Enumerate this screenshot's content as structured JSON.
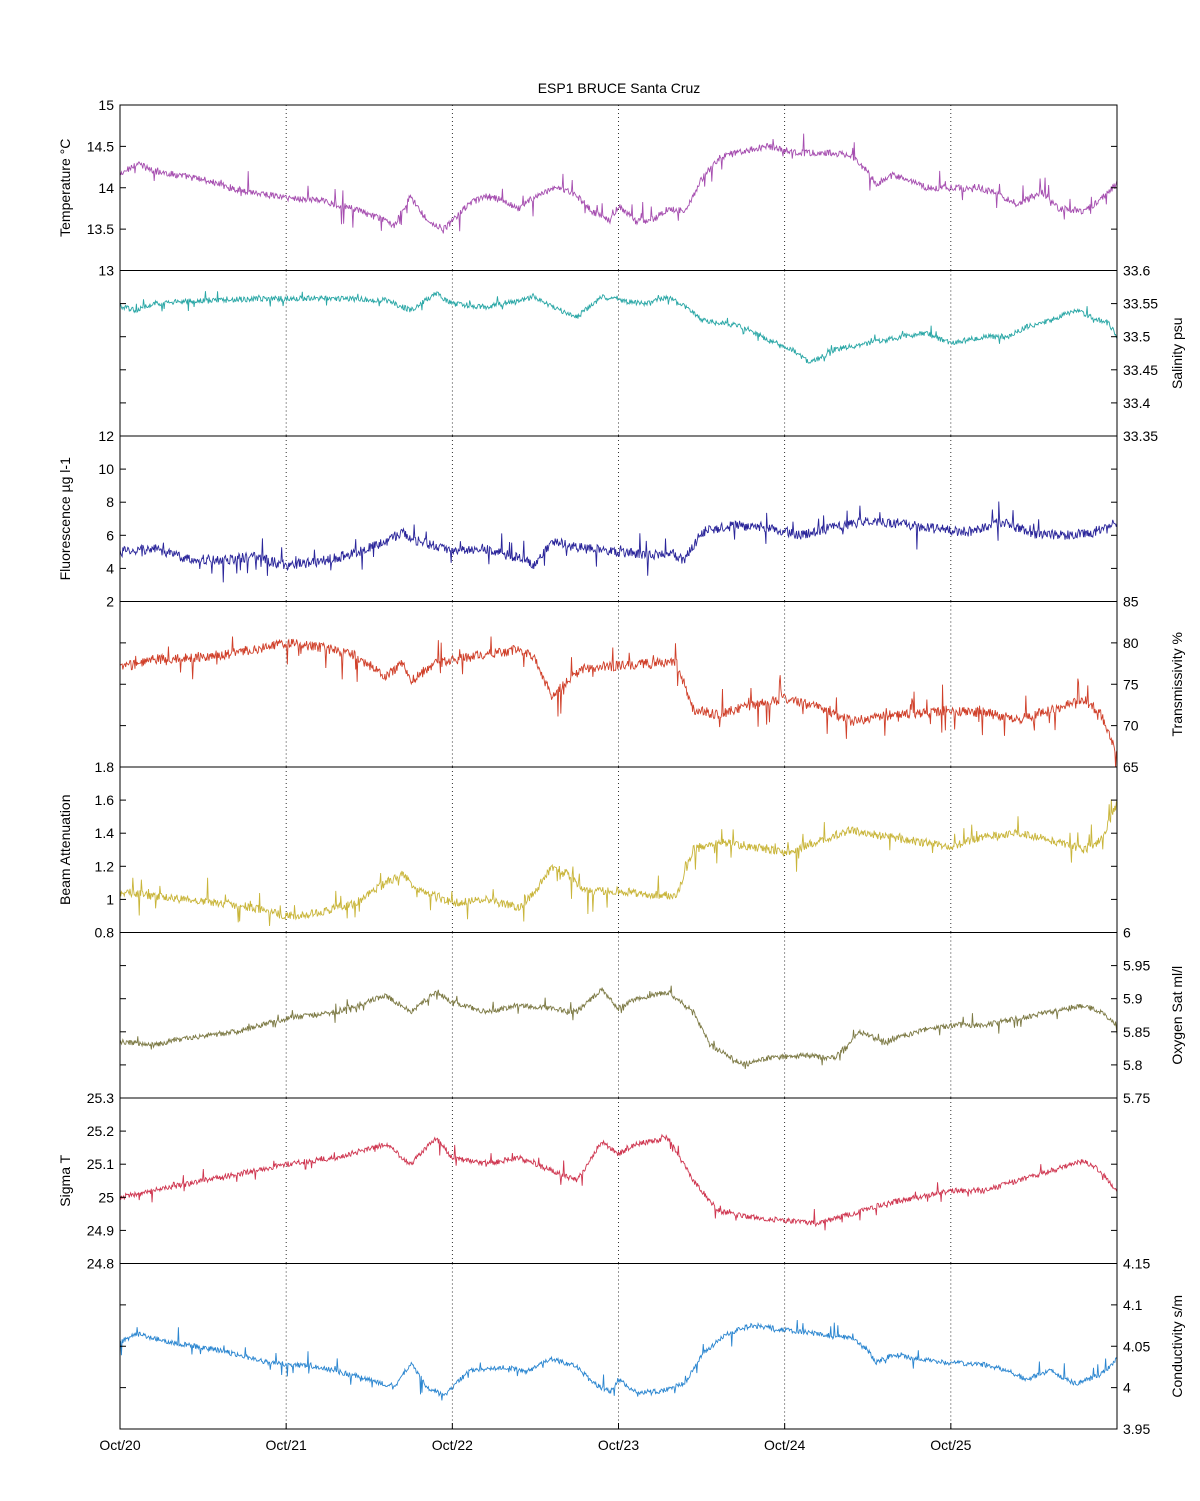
{
  "figure": {
    "title": "ESP1 BRUCE Santa Cruz"
  },
  "chart_data": [
    {
      "type": "line",
      "panel_id": "temperature",
      "ylabel": "Temperature °C",
      "axis_side": "left",
      "ylim": [
        13,
        15
      ],
      "yticks": [
        13,
        13.5,
        14,
        14.5,
        15
      ],
      "ytick_labels": [
        "13",
        "13.5",
        "14",
        "14.5",
        "15"
      ],
      "color": "#a64fb0",
      "noise_amp": 0.04,
      "spike_amp": 0.22,
      "points": [
        [
          0,
          14.15
        ],
        [
          0.1,
          14.3
        ],
        [
          0.2,
          14.2
        ],
        [
          0.3,
          14.17
        ],
        [
          0.5,
          14.1
        ],
        [
          0.7,
          13.98
        ],
        [
          1,
          13.88
        ],
        [
          1.2,
          13.85
        ],
        [
          1.4,
          13.75
        ],
        [
          1.6,
          13.6
        ],
        [
          1.65,
          13.55
        ],
        [
          1.75,
          13.9
        ],
        [
          1.85,
          13.6
        ],
        [
          1.95,
          13.5
        ],
        [
          2.1,
          13.8
        ],
        [
          2.2,
          13.9
        ],
        [
          2.3,
          13.85
        ],
        [
          2.4,
          13.75
        ],
        [
          2.5,
          13.9
        ],
        [
          2.65,
          14.0
        ],
        [
          2.75,
          13.9
        ],
        [
          2.85,
          13.7
        ],
        [
          2.95,
          13.6
        ],
        [
          3.0,
          13.78
        ],
        [
          3.1,
          13.6
        ],
        [
          3.2,
          13.6
        ],
        [
          3.3,
          13.75
        ],
        [
          3.4,
          13.72
        ],
        [
          3.5,
          14.1
        ],
        [
          3.6,
          14.35
        ],
        [
          3.75,
          14.45
        ],
        [
          3.9,
          14.5
        ],
        [
          4.1,
          14.42
        ],
        [
          4.3,
          14.42
        ],
        [
          4.4,
          14.38
        ],
        [
          4.5,
          14.2
        ],
        [
          4.55,
          14.05
        ],
        [
          4.65,
          14.15
        ],
        [
          4.75,
          14.1
        ],
        [
          4.85,
          14.0
        ],
        [
          5.0,
          14.0
        ],
        [
          5.2,
          13.98
        ],
        [
          5.3,
          13.9
        ],
        [
          5.4,
          13.8
        ],
        [
          5.55,
          13.95
        ],
        [
          5.65,
          13.75
        ],
        [
          5.8,
          13.72
        ],
        [
          5.9,
          13.85
        ],
        [
          6.0,
          14.05
        ]
      ]
    },
    {
      "type": "line",
      "panel_id": "salinity",
      "ylabel": "Salinity psu",
      "axis_side": "right",
      "ylim": [
        33.35,
        33.6
      ],
      "yticks": [
        33.35,
        33.4,
        33.45,
        33.5,
        33.55,
        33.6
      ],
      "ytick_labels": [
        "33.35",
        "33.4",
        "33.45",
        "33.5",
        "33.55",
        "33.6"
      ],
      "color": "#2aa7a6",
      "noise_amp": 0.004,
      "spike_amp": 0.012,
      "points": [
        [
          0,
          33.545
        ],
        [
          0.1,
          33.54
        ],
        [
          0.2,
          33.55
        ],
        [
          0.5,
          33.555
        ],
        [
          1,
          33.558
        ],
        [
          1.3,
          33.558
        ],
        [
          1.6,
          33.555
        ],
        [
          1.75,
          33.54
        ],
        [
          1.9,
          33.565
        ],
        [
          2.0,
          33.55
        ],
        [
          2.2,
          33.545
        ],
        [
          2.4,
          33.555
        ],
        [
          2.5,
          33.56
        ],
        [
          2.6,
          33.545
        ],
        [
          2.75,
          33.53
        ],
        [
          2.9,
          33.56
        ],
        [
          3.0,
          33.555
        ],
        [
          3.15,
          33.55
        ],
        [
          3.3,
          33.56
        ],
        [
          3.4,
          33.545
        ],
        [
          3.5,
          33.525
        ],
        [
          3.75,
          33.515
        ],
        [
          3.9,
          33.495
        ],
        [
          4.05,
          33.48
        ],
        [
          4.15,
          33.46
        ],
        [
          4.3,
          33.48
        ],
        [
          4.5,
          33.49
        ],
        [
          4.7,
          33.5
        ],
        [
          4.85,
          33.505
        ],
        [
          5.0,
          33.49
        ],
        [
          5.1,
          33.495
        ],
        [
          5.2,
          33.5
        ],
        [
          5.35,
          33.5
        ],
        [
          5.45,
          33.515
        ],
        [
          5.6,
          33.525
        ],
        [
          5.75,
          33.54
        ],
        [
          5.85,
          33.53
        ],
        [
          5.95,
          33.52
        ],
        [
          6.0,
          33.5
        ]
      ]
    },
    {
      "type": "line",
      "panel_id": "fluorescence",
      "ylabel": "Fluorescence µg l-1",
      "axis_side": "left",
      "ylim": [
        2,
        12
      ],
      "yticks": [
        2,
        4,
        6,
        8,
        10,
        12
      ],
      "ytick_labels": [
        "2",
        "4",
        "6",
        "8",
        "10",
        "12"
      ],
      "color": "#2a259a",
      "noise_amp": 0.3,
      "spike_amp": 1.2,
      "points": [
        [
          0,
          5.0
        ],
        [
          0.2,
          5.2
        ],
        [
          0.4,
          4.6
        ],
        [
          0.6,
          4.5
        ],
        [
          0.8,
          4.7
        ],
        [
          1.0,
          4.2
        ],
        [
          1.2,
          4.4
        ],
        [
          1.4,
          4.9
        ],
        [
          1.6,
          5.6
        ],
        [
          1.7,
          6.2
        ],
        [
          1.8,
          5.6
        ],
        [
          2.0,
          5.1
        ],
        [
          2.2,
          5.2
        ],
        [
          2.4,
          4.6
        ],
        [
          2.5,
          4.2
        ],
        [
          2.6,
          5.6
        ],
        [
          2.7,
          5.4
        ],
        [
          2.8,
          5.2
        ],
        [
          3.0,
          5.0
        ],
        [
          3.2,
          4.8
        ],
        [
          3.3,
          5.0
        ],
        [
          3.4,
          4.5
        ],
        [
          3.5,
          6.2
        ],
        [
          3.7,
          6.6
        ],
        [
          3.9,
          6.5
        ],
        [
          4.1,
          6.0
        ],
        [
          4.3,
          6.5
        ],
        [
          4.5,
          6.9
        ],
        [
          4.7,
          6.7
        ],
        [
          4.9,
          6.4
        ],
        [
          5.1,
          6.2
        ],
        [
          5.3,
          6.8
        ],
        [
          5.5,
          6.1
        ],
        [
          5.7,
          6.0
        ],
        [
          5.9,
          6.3
        ],
        [
          6.0,
          6.8
        ]
      ]
    },
    {
      "type": "line",
      "panel_id": "transmissivity",
      "ylabel": "Transmissivity %",
      "axis_side": "right",
      "ylim": [
        65,
        85
      ],
      "yticks": [
        65,
        70,
        75,
        80,
        85
      ],
      "ytick_labels": [
        "65",
        "70",
        "75",
        "80",
        "85"
      ],
      "color": "#d0402a",
      "noise_amp": 0.6,
      "spike_amp": 3.0,
      "points": [
        [
          0,
          77
        ],
        [
          0.2,
          78
        ],
        [
          0.4,
          78.2
        ],
        [
          0.6,
          78.5
        ],
        [
          0.8,
          79.2
        ],
        [
          1.0,
          80.0
        ],
        [
          1.2,
          79.5
        ],
        [
          1.4,
          78.6
        ],
        [
          1.6,
          76
        ],
        [
          1.7,
          77.5
        ],
        [
          1.75,
          75.5
        ],
        [
          1.9,
          77.5
        ],
        [
          2.1,
          78.3
        ],
        [
          2.3,
          78.8
        ],
        [
          2.4,
          79.3
        ],
        [
          2.5,
          78
        ],
        [
          2.6,
          73.5
        ],
        [
          2.7,
          75.5
        ],
        [
          2.8,
          77
        ],
        [
          3.0,
          77.2
        ],
        [
          3.2,
          77.5
        ],
        [
          3.35,
          77.8
        ],
        [
          3.45,
          72
        ],
        [
          3.6,
          71.3
        ],
        [
          3.8,
          72.5
        ],
        [
          4.0,
          73.2
        ],
        [
          4.2,
          72.3
        ],
        [
          4.4,
          70.5
        ],
        [
          4.6,
          71.2
        ],
        [
          4.8,
          71.5
        ],
        [
          5.0,
          71.8
        ],
        [
          5.2,
          71.6
        ],
        [
          5.4,
          70.8
        ],
        [
          5.6,
          71.8
        ],
        [
          5.8,
          73.2
        ],
        [
          5.9,
          71.5
        ],
        [
          6.0,
          66.5
        ]
      ]
    },
    {
      "type": "line",
      "panel_id": "beam_attenuation",
      "ylabel": "Beam Attenuation",
      "axis_side": "left",
      "ylim": [
        0.8,
        1.8
      ],
      "yticks": [
        0.8,
        1,
        1.2,
        1.4,
        1.6,
        1.8
      ],
      "ytick_labels": [
        "0.8",
        "1",
        "1.2",
        "1.4",
        "1.6",
        "1.8"
      ],
      "color": "#c9b53a",
      "noise_amp": 0.025,
      "spike_amp": 0.13,
      "points": [
        [
          0,
          1.05
        ],
        [
          0.2,
          1.02
        ],
        [
          0.4,
          1.0
        ],
        [
          0.6,
          0.98
        ],
        [
          0.8,
          0.95
        ],
        [
          1.0,
          0.9
        ],
        [
          1.2,
          0.92
        ],
        [
          1.4,
          0.97
        ],
        [
          1.6,
          1.1
        ],
        [
          1.7,
          1.15
        ],
        [
          1.8,
          1.05
        ],
        [
          2.0,
          0.98
        ],
        [
          2.2,
          1.0
        ],
        [
          2.4,
          0.95
        ],
        [
          2.5,
          1.05
        ],
        [
          2.6,
          1.2
        ],
        [
          2.7,
          1.15
        ],
        [
          2.8,
          1.05
        ],
        [
          3.0,
          1.05
        ],
        [
          3.2,
          1.03
        ],
        [
          3.35,
          1.02
        ],
        [
          3.45,
          1.3
        ],
        [
          3.6,
          1.35
        ],
        [
          3.8,
          1.32
        ],
        [
          4.0,
          1.28
        ],
        [
          4.2,
          1.35
        ],
        [
          4.4,
          1.42
        ],
        [
          4.6,
          1.38
        ],
        [
          4.8,
          1.35
        ],
        [
          5.0,
          1.32
        ],
        [
          5.2,
          1.38
        ],
        [
          5.4,
          1.4
        ],
        [
          5.6,
          1.36
        ],
        [
          5.8,
          1.3
        ],
        [
          5.9,
          1.35
        ],
        [
          6.0,
          1.58
        ]
      ]
    },
    {
      "type": "line",
      "panel_id": "oxygen_sat",
      "ylabel": "Oxygen Sat ml/l",
      "axis_side": "right",
      "ylim": [
        5.75,
        6
      ],
      "yticks": [
        5.75,
        5.8,
        5.85,
        5.9,
        5.95,
        6
      ],
      "ytick_labels": [
        "5.75",
        "5.8",
        "5.85",
        "5.9",
        "5.95",
        "6"
      ],
      "color": "#7d7a45",
      "noise_amp": 0.004,
      "spike_amp": 0.015,
      "points": [
        [
          0,
          5.835
        ],
        [
          0.2,
          5.83
        ],
        [
          0.4,
          5.84
        ],
        [
          0.7,
          5.85
        ],
        [
          1.0,
          5.87
        ],
        [
          1.3,
          5.88
        ],
        [
          1.6,
          5.905
        ],
        [
          1.75,
          5.88
        ],
        [
          1.9,
          5.91
        ],
        [
          2.0,
          5.895
        ],
        [
          2.2,
          5.88
        ],
        [
          2.4,
          5.89
        ],
        [
          2.6,
          5.885
        ],
        [
          2.75,
          5.88
        ],
        [
          2.9,
          5.915
        ],
        [
          3.0,
          5.885
        ],
        [
          3.1,
          5.9
        ],
        [
          3.3,
          5.91
        ],
        [
          3.45,
          5.88
        ],
        [
          3.55,
          5.83
        ],
        [
          3.75,
          5.8
        ],
        [
          3.9,
          5.81
        ],
        [
          4.1,
          5.815
        ],
        [
          4.3,
          5.81
        ],
        [
          4.45,
          5.85
        ],
        [
          4.6,
          5.835
        ],
        [
          4.8,
          5.85
        ],
        [
          5.0,
          5.86
        ],
        [
          5.2,
          5.86
        ],
        [
          5.4,
          5.87
        ],
        [
          5.6,
          5.88
        ],
        [
          5.8,
          5.89
        ],
        [
          5.9,
          5.88
        ],
        [
          6.0,
          5.86
        ]
      ]
    },
    {
      "type": "line",
      "panel_id": "sigma_t",
      "ylabel": "Sigma T",
      "axis_side": "left",
      "ylim": [
        24.8,
        25.3
      ],
      "yticks": [
        24.8,
        24.9,
        25,
        25.1,
        25.2,
        25.3
      ],
      "ytick_labels": [
        "24.8",
        "24.9",
        "25",
        "25.1",
        "25.2",
        "25.3"
      ],
      "color": "#cf3650",
      "noise_amp": 0.008,
      "spike_amp": 0.04,
      "points": [
        [
          0,
          25.0
        ],
        [
          0.2,
          25.02
        ],
        [
          0.4,
          25.04
        ],
        [
          0.7,
          25.07
        ],
        [
          1.0,
          25.1
        ],
        [
          1.3,
          25.12
        ],
        [
          1.6,
          25.16
        ],
        [
          1.75,
          25.1
        ],
        [
          1.9,
          25.18
        ],
        [
          2.0,
          25.12
        ],
        [
          2.2,
          25.1
        ],
        [
          2.4,
          25.12
        ],
        [
          2.6,
          25.08
        ],
        [
          2.75,
          25.05
        ],
        [
          2.9,
          25.17
        ],
        [
          3.0,
          25.13
        ],
        [
          3.1,
          25.16
        ],
        [
          3.3,
          25.18
        ],
        [
          3.45,
          25.05
        ],
        [
          3.6,
          24.96
        ],
        [
          3.8,
          24.94
        ],
        [
          4.0,
          24.93
        ],
        [
          4.2,
          24.92
        ],
        [
          4.4,
          24.95
        ],
        [
          4.6,
          24.98
        ],
        [
          4.8,
          25.0
        ],
        [
          5.0,
          25.02
        ],
        [
          5.2,
          25.02
        ],
        [
          5.4,
          25.05
        ],
        [
          5.6,
          25.08
        ],
        [
          5.8,
          25.11
        ],
        [
          5.9,
          25.08
        ],
        [
          6.0,
          25.02
        ]
      ]
    },
    {
      "type": "line",
      "panel_id": "conductivity",
      "ylabel": "Conductivity s/m",
      "axis_side": "right",
      "ylim": [
        3.95,
        4.15
      ],
      "yticks": [
        3.95,
        4,
        4.05,
        4.1,
        4.15
      ],
      "ytick_labels": [
        "3.95",
        "4",
        "4.05",
        "4.1",
        "4.15"
      ],
      "color": "#2b86d0",
      "noise_amp": 0.003,
      "spike_amp": 0.018,
      "points": [
        [
          0,
          4.055
        ],
        [
          0.1,
          4.065
        ],
        [
          0.3,
          4.055
        ],
        [
          0.6,
          4.045
        ],
        [
          0.9,
          4.03
        ],
        [
          1.2,
          4.025
        ],
        [
          1.5,
          4.01
        ],
        [
          1.65,
          4.0
        ],
        [
          1.75,
          4.03
        ],
        [
          1.85,
          4.0
        ],
        [
          1.95,
          3.99
        ],
        [
          2.1,
          4.02
        ],
        [
          2.3,
          4.025
        ],
        [
          2.45,
          4.02
        ],
        [
          2.6,
          4.035
        ],
        [
          2.75,
          4.025
        ],
        [
          2.85,
          4.005
        ],
        [
          2.95,
          3.995
        ],
        [
          3.0,
          4.01
        ],
        [
          3.1,
          3.995
        ],
        [
          3.25,
          3.995
        ],
        [
          3.4,
          4.005
        ],
        [
          3.5,
          4.04
        ],
        [
          3.65,
          4.065
        ],
        [
          3.8,
          4.075
        ],
        [
          4.0,
          4.07
        ],
        [
          4.2,
          4.065
        ],
        [
          4.4,
          4.06
        ],
        [
          4.5,
          4.045
        ],
        [
          4.55,
          4.03
        ],
        [
          4.65,
          4.04
        ],
        [
          4.8,
          4.035
        ],
        [
          5.0,
          4.03
        ],
        [
          5.2,
          4.028
        ],
        [
          5.35,
          4.02
        ],
        [
          5.45,
          4.01
        ],
        [
          5.6,
          4.02
        ],
        [
          5.75,
          4.005
        ],
        [
          5.9,
          4.015
        ],
        [
          6.0,
          4.035
        ]
      ]
    }
  ],
  "x_axis": {
    "range": [
      "Oct/20",
      "Oct/26"
    ],
    "ticks": [
      "Oct/20",
      "Oct/21",
      "Oct/22",
      "Oct/23",
      "Oct/24",
      "Oct/25"
    ],
    "grid": "dotted vertical at each day"
  }
}
